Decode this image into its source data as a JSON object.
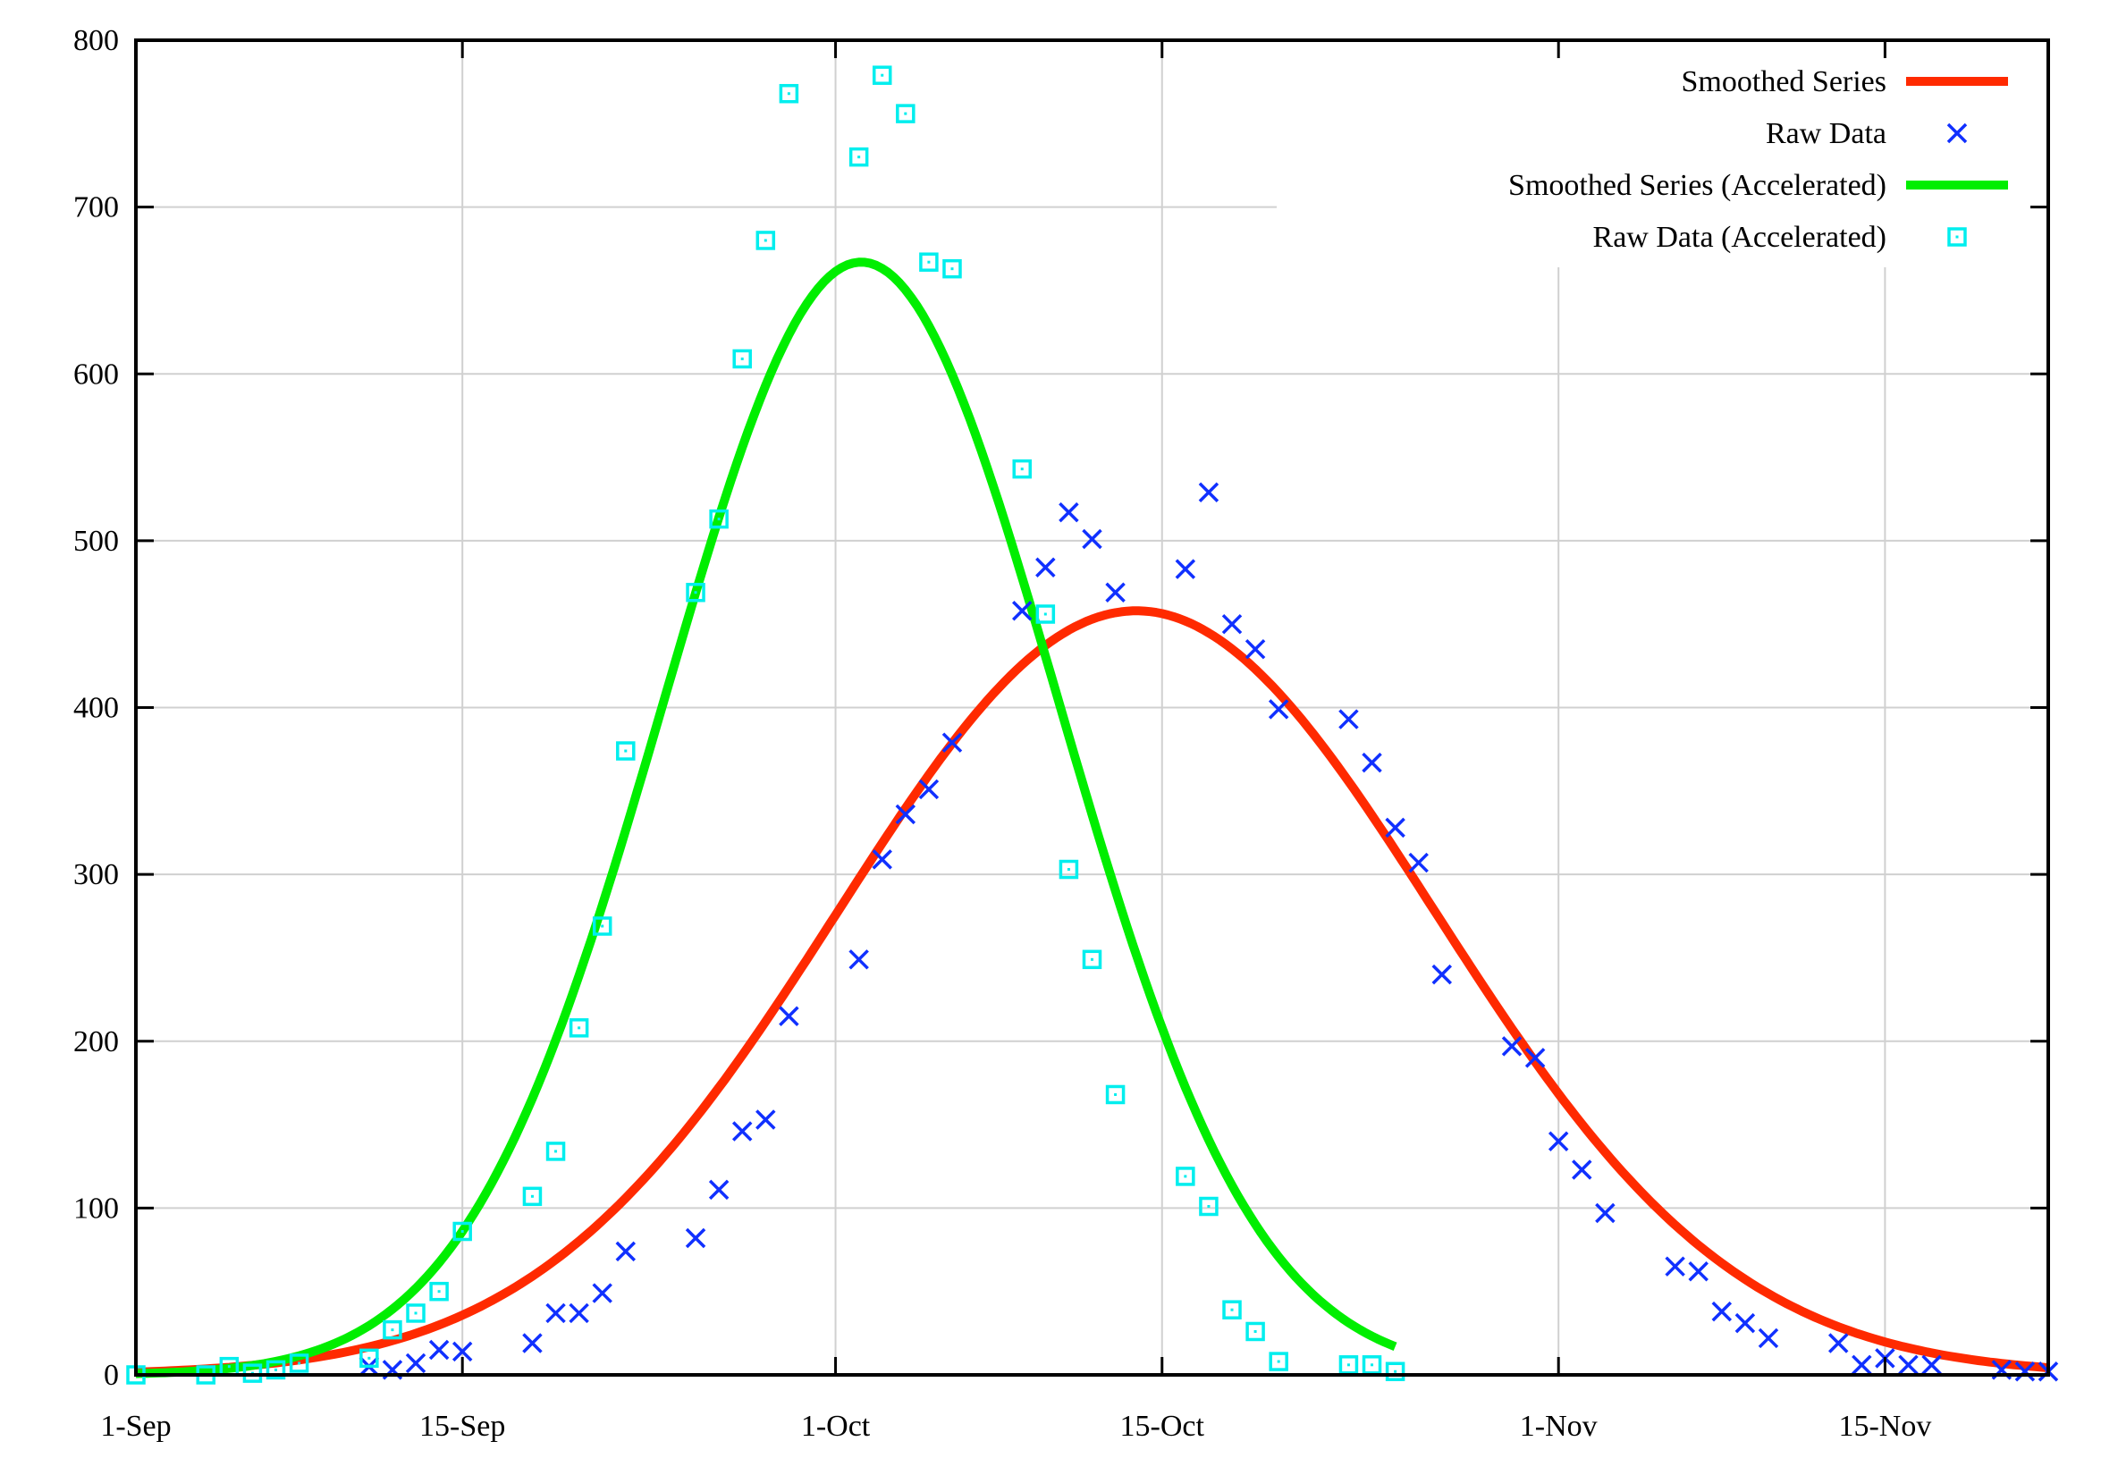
{
  "chart_data": {
    "type": "line",
    "title": "",
    "xlabel": "",
    "ylabel": "",
    "x_unit": "days since 1-Sep",
    "xlim": [
      0,
      82
    ],
    "ylim": [
      0,
      800
    ],
    "grid": true,
    "legend_position": "top-right",
    "x_ticks": [
      {
        "value": 0,
        "label": "1-Sep"
      },
      {
        "value": 14,
        "label": "15-Sep"
      },
      {
        "value": 30,
        "label": "1-Oct"
      },
      {
        "value": 44,
        "label": "15-Oct"
      },
      {
        "value": 61,
        "label": "1-Nov"
      },
      {
        "value": 75,
        "label": "15-Nov"
      }
    ],
    "y_ticks": [
      {
        "value": 0,
        "label": "0"
      },
      {
        "value": 100,
        "label": "100"
      },
      {
        "value": 200,
        "label": "200"
      },
      {
        "value": 300,
        "label": "300"
      },
      {
        "value": 400,
        "label": "400"
      },
      {
        "value": 500,
        "label": "500"
      },
      {
        "value": 600,
        "label": "600"
      },
      {
        "value": 700,
        "label": "700"
      },
      {
        "value": 800,
        "label": "800"
      }
    ],
    "series": [
      {
        "name": "Smoothed Series",
        "kind": "line",
        "color": "#ff2a00",
        "curve": {
          "shape": "gaussian",
          "amplitude": 458,
          "center": 42.9,
          "sigma": 12.8,
          "x_range": [
            0,
            82
          ]
        }
      },
      {
        "name": "Raw Data",
        "kind": "scatter",
        "marker": "x",
        "color": "#1030ff",
        "points": [
          [
            10,
            5
          ],
          [
            11,
            3
          ],
          [
            12,
            7
          ],
          [
            13,
            15
          ],
          [
            14,
            14
          ],
          [
            17,
            19
          ],
          [
            18,
            37
          ],
          [
            19,
            37
          ],
          [
            20,
            49
          ],
          [
            21,
            74
          ],
          [
            24,
            82
          ],
          [
            25,
            111
          ],
          [
            26,
            146
          ],
          [
            27,
            153
          ],
          [
            28,
            215
          ],
          [
            31,
            249
          ],
          [
            32,
            309
          ],
          [
            33,
            336
          ],
          [
            34,
            351
          ],
          [
            35,
            379
          ],
          [
            38,
            458
          ],
          [
            39,
            484
          ],
          [
            40,
            517
          ],
          [
            41,
            501
          ],
          [
            42,
            469
          ],
          [
            45,
            483
          ],
          [
            46,
            529
          ],
          [
            47,
            450
          ],
          [
            48,
            435
          ],
          [
            49,
            399
          ],
          [
            52,
            393
          ],
          [
            53,
            367
          ],
          [
            54,
            328
          ],
          [
            55,
            307
          ],
          [
            56,
            240
          ],
          [
            59,
            197
          ],
          [
            60,
            190
          ],
          [
            61,
            140
          ],
          [
            62,
            123
          ],
          [
            63,
            97
          ],
          [
            66,
            65
          ],
          [
            67,
            62
          ],
          [
            68,
            38
          ],
          [
            69,
            31
          ],
          [
            70,
            22
          ],
          [
            73,
            19
          ],
          [
            74,
            6
          ],
          [
            75,
            10
          ],
          [
            76,
            6
          ],
          [
            77,
            6
          ],
          [
            80,
            3
          ],
          [
            81,
            2
          ],
          [
            82,
            2
          ]
        ]
      },
      {
        "name": "Smoothed Series (Accelerated)",
        "kind": "line",
        "color": "#00ee00",
        "curve": {
          "shape": "gaussian",
          "amplitude": 667,
          "center": 31.1,
          "sigma": 8.45,
          "x_range": [
            0,
            54
          ]
        }
      },
      {
        "name": "Raw Data (Accelerated)",
        "kind": "scatter",
        "marker": "dotted-square",
        "color": "#00eeee",
        "points": [
          [
            0,
            0
          ],
          [
            3,
            0
          ],
          [
            4,
            5
          ],
          [
            5,
            1
          ],
          [
            6,
            3
          ],
          [
            7,
            7
          ],
          [
            10,
            10
          ],
          [
            11,
            27
          ],
          [
            12,
            37
          ],
          [
            13,
            50
          ],
          [
            14,
            86
          ],
          [
            17,
            107
          ],
          [
            18,
            134
          ],
          [
            19,
            208
          ],
          [
            20,
            269
          ],
          [
            21,
            374
          ],
          [
            24,
            469
          ],
          [
            25,
            513
          ],
          [
            26,
            609
          ],
          [
            27,
            680
          ],
          [
            28,
            768
          ],
          [
            31,
            730
          ],
          [
            32,
            779
          ],
          [
            33,
            756
          ],
          [
            34,
            667
          ],
          [
            35,
            663
          ],
          [
            38,
            543
          ],
          [
            39,
            456
          ],
          [
            40,
            303
          ],
          [
            41,
            249
          ],
          [
            42,
            168
          ],
          [
            45,
            119
          ],
          [
            46,
            101
          ],
          [
            47,
            39
          ],
          [
            48,
            26
          ],
          [
            49,
            8
          ],
          [
            52,
            6
          ],
          [
            53,
            6
          ],
          [
            54,
            2
          ]
        ]
      }
    ]
  }
}
